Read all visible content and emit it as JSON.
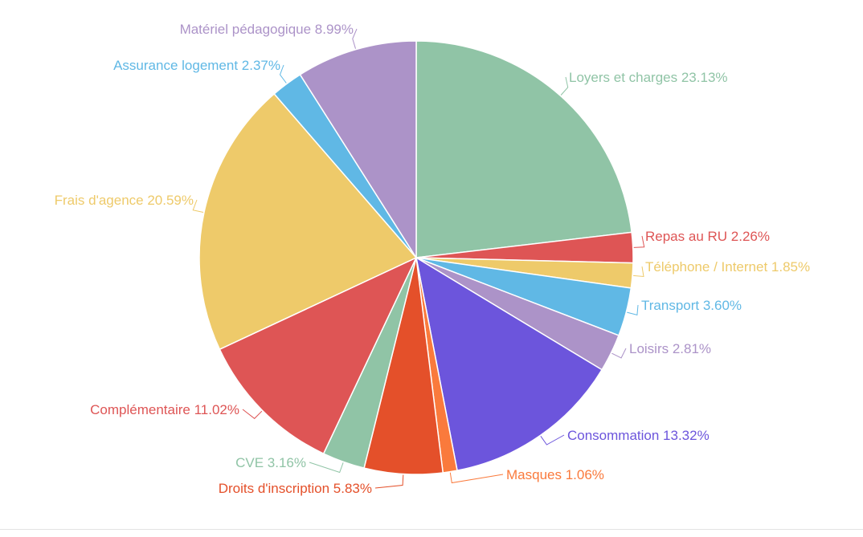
{
  "chart_data": {
    "type": "pie",
    "title": "",
    "start_angle_deg": 0,
    "direction": "clockwise",
    "slices": [
      {
        "label": "Loyers et charges",
        "value": 23.13,
        "display": "Loyers et charges 23.13%",
        "color": "#90c4a6",
        "label_color": "#90c4a6"
      },
      {
        "label": "Repas au RU",
        "value": 2.26,
        "display": "Repas au RU 2.26%",
        "color": "#de5555",
        "label_color": "#de5555"
      },
      {
        "label": "Téléphone / Internet",
        "value": 1.85,
        "display": "Téléphone / Internet 1.85%",
        "color": "#eeca6a",
        "label_color": "#eeca6a"
      },
      {
        "label": "Transport",
        "value": 3.6,
        "display": "Transport 3.60%",
        "color": "#60b8e5",
        "label_color": "#60b8e5"
      },
      {
        "label": "Loisirs",
        "value": 2.81,
        "display": "Loisirs 2.81%",
        "color": "#ac93c8",
        "label_color": "#ac93c8"
      },
      {
        "label": "Consommation",
        "value": 13.32,
        "display": "Consommation 13.32%",
        "color": "#6c55dc",
        "label_color": "#6c55dc"
      },
      {
        "label": "Masques",
        "value": 1.06,
        "display": "Masques 1.06%",
        "color": "#fa7a3c",
        "label_color": "#fa7a3c"
      },
      {
        "label": "Droits d'inscription",
        "value": 5.83,
        "display": "Droits d'inscription 5.83%",
        "color": "#e4502a",
        "label_color": "#e4502a"
      },
      {
        "label": "CVE",
        "value": 3.16,
        "display": "CVE 3.16%",
        "color": "#90c4a6",
        "label_color": "#90c4a6"
      },
      {
        "label": "Complémentaire",
        "value": 11.02,
        "display": "Complémentaire 11.02%",
        "color": "#de5555",
        "label_color": "#de5555"
      },
      {
        "label": "Frais d'agence",
        "value": 20.59,
        "display": "Frais d'agence 20.59%",
        "color": "#eeca6a",
        "label_color": "#eeca6a"
      },
      {
        "label": "Assurance logement",
        "value": 2.37,
        "display": "Assurance logement 2.37%",
        "color": "#60b8e5",
        "label_color": "#60b8e5"
      },
      {
        "label": "Matériel pédagogique",
        "value": 8.99,
        "display": "Matériel pédagogique 8.99%",
        "color": "#ac93c8",
        "label_color": "#ac93c8"
      }
    ]
  }
}
